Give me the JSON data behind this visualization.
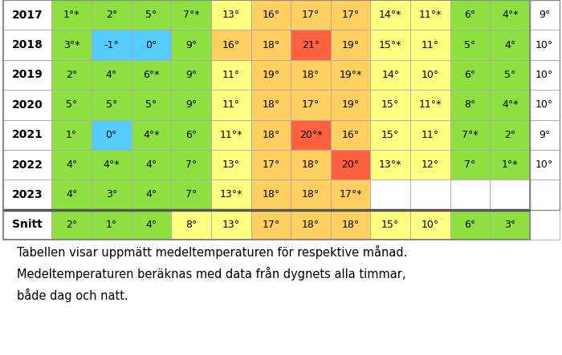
{
  "rows": [
    {
      "year": "2017",
      "vals": [
        "1°*",
        "2°",
        "5°",
        "7°*",
        "13°",
        "16°",
        "17°",
        "17°",
        "14°*",
        "11°*",
        "6°",
        "4°*"
      ],
      "avg": "9°"
    },
    {
      "year": "2018",
      "vals": [
        "3°*",
        "-1°",
        "0°",
        "9°",
        "16°",
        "18°",
        "21°",
        "19°",
        "15°*",
        "11°",
        "5°",
        "4°"
      ],
      "avg": "10°"
    },
    {
      "year": "2019",
      "vals": [
        "2°",
        "4°",
        "6°*",
        "9°",
        "11°",
        "19°",
        "18°",
        "19°*",
        "14°",
        "10°",
        "6°",
        "5°"
      ],
      "avg": "10°"
    },
    {
      "year": "2020",
      "vals": [
        "5°",
        "5°",
        "5°",
        "9°",
        "11°",
        "18°",
        "17°",
        "19°",
        "15°",
        "11°*",
        "8°",
        "4°*"
      ],
      "avg": "10°"
    },
    {
      "year": "2021",
      "vals": [
        "1°",
        "0°",
        "4°*",
        "6°",
        "11°*",
        "18°",
        "20°*",
        "16°",
        "15°",
        "11°",
        "7°*",
        "2°"
      ],
      "avg": "9°"
    },
    {
      "year": "2022",
      "vals": [
        "4°",
        "4°*",
        "4°",
        "7°",
        "13°",
        "17°",
        "18°",
        "20°",
        "13°*",
        "12°",
        "7°",
        "1°*"
      ],
      "avg": "10°"
    },
    {
      "year": "2023",
      "vals": [
        "4°",
        "3°",
        "4°",
        "7°",
        "13°*",
        "18°",
        "18°",
        "17°*",
        "",
        "",
        "",
        ""
      ],
      "avg": ""
    },
    {
      "year": "Snitt",
      "vals": [
        "2°",
        "1°",
        "4°",
        "8°",
        "13°",
        "17°",
        "18°",
        "18°",
        "15°",
        "10°",
        "6°",
        "3°"
      ],
      "avg": ""
    }
  ],
  "colors": [
    [
      "#8EE040",
      "#8EE040",
      "#8EE040",
      "#8EE040",
      "#FFFF80",
      "#FFD060",
      "#FFD060",
      "#FFD060",
      "#FFFF80",
      "#FFFF80",
      "#8EE040",
      "#8EE040"
    ],
    [
      "#8EE040",
      "#55CCFF",
      "#55CCFF",
      "#8EE040",
      "#FFD060",
      "#FFD060",
      "#FF6040",
      "#FFD060",
      "#FFFF80",
      "#FFFF80",
      "#8EE040",
      "#8EE040"
    ],
    [
      "#8EE040",
      "#8EE040",
      "#8EE040",
      "#8EE040",
      "#FFFF80",
      "#FFD060",
      "#FFD060",
      "#FFD060",
      "#FFFF80",
      "#FFFF80",
      "#8EE040",
      "#8EE040"
    ],
    [
      "#8EE040",
      "#8EE040",
      "#8EE040",
      "#8EE040",
      "#FFFF80",
      "#FFD060",
      "#FFD060",
      "#FFD060",
      "#FFFF80",
      "#FFFF80",
      "#8EE040",
      "#8EE040"
    ],
    [
      "#8EE040",
      "#55CCFF",
      "#8EE040",
      "#8EE040",
      "#FFFF80",
      "#FFD060",
      "#FF6040",
      "#FFD060",
      "#FFFF80",
      "#FFFF80",
      "#8EE040",
      "#8EE040"
    ],
    [
      "#8EE040",
      "#8EE040",
      "#8EE040",
      "#8EE040",
      "#FFFF80",
      "#FFD060",
      "#FFD060",
      "#FF6040",
      "#FFFF80",
      "#FFFF80",
      "#8EE040",
      "#8EE040"
    ],
    [
      "#8EE040",
      "#8EE040",
      "#8EE040",
      "#8EE040",
      "#FFFF80",
      "#FFD060",
      "#FFD060",
      "#FFD060",
      "",
      "",
      "",
      ""
    ],
    [
      "#8EE040",
      "#8EE040",
      "#8EE040",
      "#FFFF80",
      "#FFFF80",
      "#FFD060",
      "#FFD060",
      "#FFD060",
      "#FFFF80",
      "#FFFF80",
      "#8EE040",
      "#8EE040"
    ]
  ],
  "caption": "Tabellen visar uppmätt medeltemperaturen för respektive månad.\nMedeltemperaturen beräknas med data från dygnets alla timmar,\nbåde dag och natt.",
  "fig_width": 7.0,
  "fig_height": 4.43,
  "dpi": 100
}
